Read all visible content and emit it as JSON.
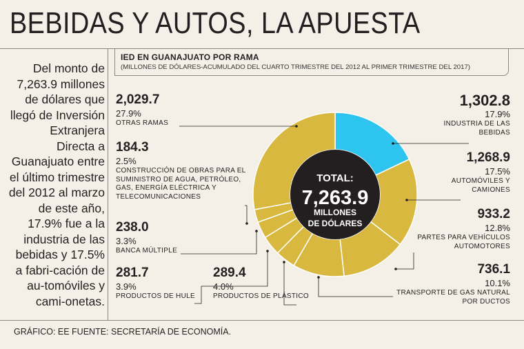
{
  "title": "BEBIDAS Y AUTOS, LA APUESTA",
  "side_text": "Del monto de 7,263.9 millones de dólares que llegó de Inversión Extranjera Directa a Guanajuato entre el último trimestre del 2012 al marzo de este año, 17.9% fue a la industria de las bebidas y 17.5% a fabri-cación de au-tomóviles y cami-onetas.",
  "footer": "GRÁFICO: EE  FUENTE: SECRETARÍA DE ECONOMÍA.",
  "colors": {
    "highlight": "#2ec4f0",
    "segment": "#d9b83f",
    "center": "#231f20",
    "background": "#f4efe7",
    "separator": "#ffffff"
  },
  "chart_data": {
    "type": "pie",
    "title": "IED EN GUANAJUATO POR RAMA",
    "subtitle": "(MILLONES DE DÓLARES-ACUMULADO DEL CUARTO TRIMESTRE DEL 2012 AL PRIMER TRIMESTRE DEL 2017)",
    "center": {
      "label": "TOTAL:",
      "value": "7,263.9",
      "unit_line1": "MILLONES",
      "unit_line2": "DE DÓLARES"
    },
    "categories": [
      "INDUSTRIA DE LAS BEBIDAS",
      "AUTOMÓVILES Y CAMIONES",
      "PARTES PARA VEHÍCULOS AUTOMOTORES",
      "TRANSPORTE DE GAS NATURAL POR DUCTOS",
      "PRODUCTOS DE PLÁSTICO",
      "PRODUCTOS DE HULE",
      "BANCA MÚLTIPLE",
      "CONSTRUCCIÓN DE OBRAS PARA EL SUMINISTRO DE AGUA, PETRÓLEO, GAS, ENERGÍA ELÉCTRICA Y TELECOMUNICACIONES",
      "OTRAS RAMAS"
    ],
    "values": [
      1302.8,
      1268.9,
      933.2,
      736.1,
      289.4,
      281.7,
      238.0,
      184.3,
      2029.7
    ],
    "value_labels": [
      "1,302.8",
      "1,268.9",
      "933.2",
      "736.1",
      "289.4",
      "281.7",
      "238.0",
      "184.3",
      "2,029.7"
    ],
    "percent_labels": [
      "17.9%",
      "17.5%",
      "12.8%",
      "10.1%",
      "4.0%",
      "3.9%",
      "3.3%",
      "2.5%",
      "27.9%"
    ],
    "category_lines": [
      [
        "INDUSTRIA DE LAS",
        "BEBIDAS"
      ],
      [
        "AUTOMÓVILES Y",
        "CAMIONES"
      ],
      [
        "PARTES PARA VEHÍCULOS",
        "AUTOMOTORES"
      ],
      [
        "TRANSPORTE DE GAS NATURAL",
        "POR DUCTOS"
      ],
      [
        "PRODUCTOS DE PLÁSTICO"
      ],
      [
        "PRODUCTOS DE HULE"
      ],
      [
        "BANCA MÚLTIPLE"
      ],
      [
        "CONSTRUCCIÓN DE OBRAS PARA EL",
        "SUMINISTRO DE AGUA, PETRÓLEO,",
        "GAS, ENERGÍA ELÉCTRICA Y",
        "TELECOMUNICACIONES"
      ],
      [
        "OTRAS RAMAS"
      ]
    ],
    "highlighted_category": "INDUSTRIA DE LAS BEBIDAS",
    "legend": "none"
  }
}
